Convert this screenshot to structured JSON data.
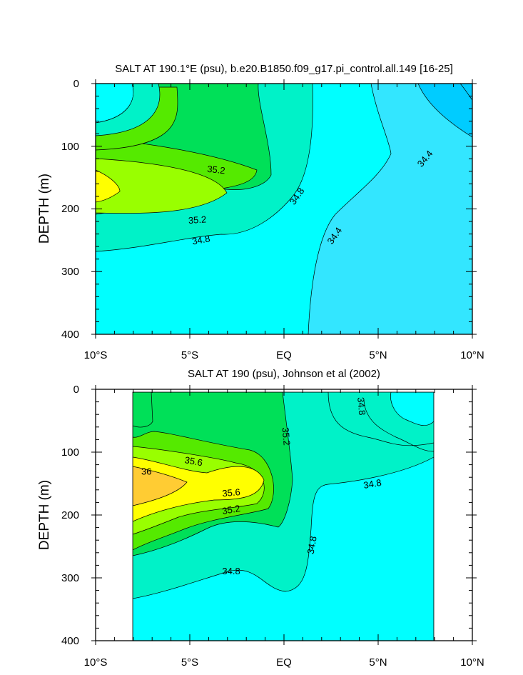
{
  "chart_data": [
    {
      "type": "contour",
      "title": "SALT AT 190.1°E (psu), b.e20.B1850.f09_g17.pi_control.all.149 [16-25]",
      "ylabel": "DEPTH (m)",
      "xlabel": "",
      "xlim": [
        -10,
        10
      ],
      "ylim": [
        0,
        400
      ],
      "y_inverted": true,
      "x_ticks": [
        {
          "value": -10,
          "label": "10°S"
        },
        {
          "value": -5,
          "label": "5°S"
        },
        {
          "value": 0,
          "label": "EQ"
        },
        {
          "value": 5,
          "label": "5°N"
        },
        {
          "value": 10,
          "label": "10°N"
        }
      ],
      "y_ticks": [
        {
          "value": 0,
          "label": "0"
        },
        {
          "value": 100,
          "label": "100"
        },
        {
          "value": 200,
          "label": "200"
        },
        {
          "value": 300,
          "label": "300"
        },
        {
          "value": 400,
          "label": "400"
        }
      ],
      "contour_labels": [
        {
          "text": "35.2",
          "lon": -3.6,
          "depth": 138,
          "angle": 6
        },
        {
          "text": "35.2",
          "lon": -4.6,
          "depth": 218,
          "angle": -4
        },
        {
          "text": "34.8",
          "lon": -4.4,
          "depth": 250,
          "angle": -10
        },
        {
          "text": "34.8",
          "lon": 0.7,
          "depth": 180,
          "angle": -55
        },
        {
          "text": "34.4",
          "lon": 2.7,
          "depth": 243,
          "angle": -55
        },
        {
          "text": "34.4",
          "lon": 7.5,
          "depth": 120,
          "angle": -50
        }
      ]
    },
    {
      "type": "contour",
      "title": "SALT AT 190 (psu), Johnson et al (2002)",
      "ylabel": "DEPTH (m)",
      "xlabel": "",
      "xlim": [
        -10,
        10
      ],
      "ylim": [
        0,
        400
      ],
      "y_inverted": true,
      "data_lon_range": [
        -8,
        8
      ],
      "x_ticks": [
        {
          "value": -10,
          "label": "10°S"
        },
        {
          "value": -5,
          "label": "5°S"
        },
        {
          "value": 0,
          "label": "EQ"
        },
        {
          "value": 5,
          "label": "5°N"
        },
        {
          "value": 10,
          "label": "10°N"
        }
      ],
      "y_ticks": [
        {
          "value": 0,
          "label": "0"
        },
        {
          "value": 100,
          "label": "100"
        },
        {
          "value": 200,
          "label": "200"
        },
        {
          "value": 300,
          "label": "300"
        },
        {
          "value": 400,
          "label": "400"
        }
      ],
      "contour_labels": [
        {
          "text": "35.6",
          "lon": -4.8,
          "depth": 115,
          "angle": 10
        },
        {
          "text": "36",
          "lon": -7.3,
          "depth": 131,
          "angle": 0
        },
        {
          "text": "35.6",
          "lon": -2.8,
          "depth": 165,
          "angle": -5
        },
        {
          "text": "35.2",
          "lon": -2.8,
          "depth": 192,
          "angle": -10
        },
        {
          "text": "35.2",
          "lon": 0.1,
          "depth": 75,
          "angle": 85
        },
        {
          "text": "34.8",
          "lon": 4.1,
          "depth": 27,
          "angle": 85
        },
        {
          "text": "34.8",
          "lon": 4.7,
          "depth": 151,
          "angle": -10
        },
        {
          "text": "34.8",
          "lon": 1.5,
          "depth": 248,
          "angle": -80
        },
        {
          "text": "34.8",
          "lon": -2.8,
          "depth": 290,
          "angle": 0
        }
      ]
    }
  ],
  "colors": {
    "c343": "#33e6ff",
    "c344": "#00ffff",
    "c348": "#00f2c8",
    "c352": "#00e058",
    "c354": "#55ea00",
    "c356": "#99ff00",
    "c358": "#ffff00",
    "c360": "#ffcc33",
    "cdeep": "#00ccff"
  }
}
